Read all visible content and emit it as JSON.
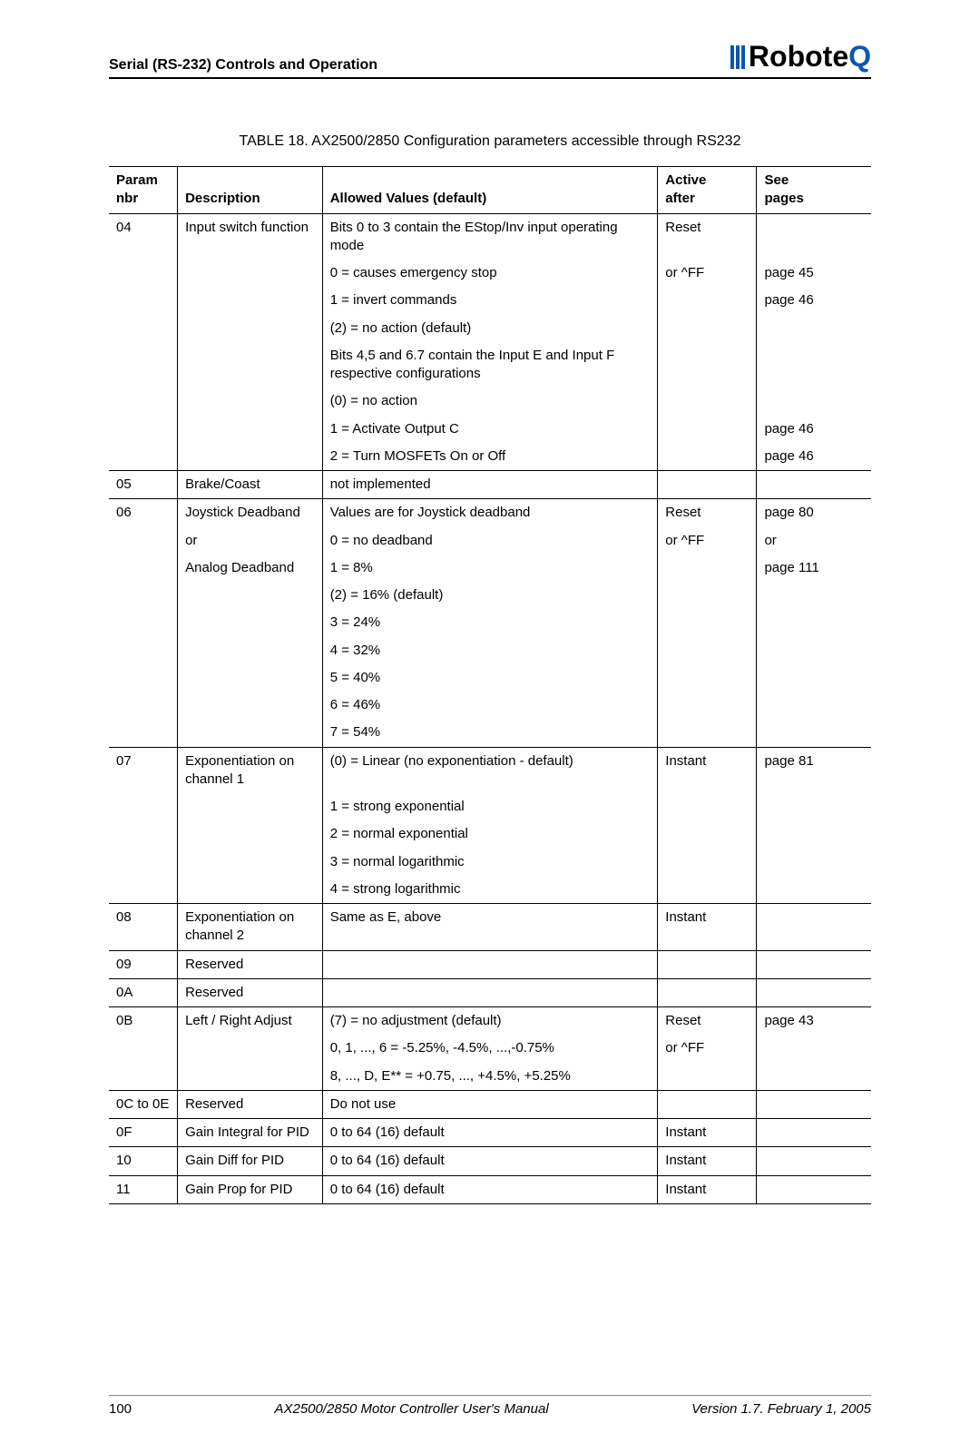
{
  "header": {
    "section": "Serial (RS-232) Controls and Operation",
    "logo_text_a": "Robote",
    "logo_text_b": "Q"
  },
  "caption": "TABLE 18. AX2500/2850 Configuration parameters accessible through RS232",
  "col_headers": {
    "c1a": "Param",
    "c1b": "nbr",
    "c2": "Description",
    "c3": "Allowed Values (default)",
    "c4a": "Active",
    "c4b": "after",
    "c5a": "See",
    "c5b": "pages"
  },
  "r04": {
    "nbr": "04",
    "desc": "Input switch function",
    "v1": "Bits 0 to 3 contain the EStop/Inv input operating mode",
    "v2": "0 = causes emergency stop",
    "v3": "1 = invert commands",
    "v4": "(2) = no action (default)",
    "v5": "Bits 4,5 and 6.7 contain the Input E and Input F respective configurations",
    "v6": "(0) = no action",
    "v7": "1 = Activate Output C",
    "v8": "2 = Turn MOSFETs On or Off",
    "act1": "Reset",
    "act2": "or ^FF",
    "p2": "page 45",
    "p3": "page 46",
    "p7": "page 46",
    "p8": "page 46"
  },
  "r05": {
    "nbr": "05",
    "desc": "Brake/Coast",
    "v": "not implemented"
  },
  "r06": {
    "nbr": "06",
    "d1": "Joystick Deadband",
    "d2": "or",
    "d3": "Analog Deadband",
    "v1": "Values are for Joystick deadband",
    "v2": "0 = no deadband",
    "v3": "1 = 8%",
    "v4": "(2) = 16% (default)",
    "v5": "3 = 24%",
    "v6": "4 = 32%",
    "v7": "5 = 40%",
    "v8": "6 = 46%",
    "v9": "7 = 54%",
    "act1": "Reset",
    "act2": "or ^FF",
    "p1": "page 80",
    "p2": "or",
    "p3": "page 111"
  },
  "r07": {
    "nbr": "07",
    "desc": "Exponentiation on channel 1",
    "v1": "(0) = Linear (no exponentiation - default)",
    "v2": "1 = strong exponential",
    "v3": "2 = normal exponential",
    "v4": "3 = normal logarithmic",
    "v5": "4 = strong logarithmic",
    "act": "Instant",
    "p": "page 81"
  },
  "r08": {
    "nbr": "08",
    "desc": "Exponentiation on channel 2",
    "v": "Same as E, above",
    "act": "Instant"
  },
  "r09": {
    "nbr": "09",
    "desc": "Reserved"
  },
  "r0A": {
    "nbr": "0A",
    "desc": "Reserved"
  },
  "r0B": {
    "nbr": "0B",
    "desc": "Left / Right Adjust",
    "v1": "(7) = no adjustment (default)",
    "v2": "0, 1, ..., 6 = -5.25%, -4.5%, ...,-0.75%",
    "v3": "8, ..., D, E** = +0.75, ..., +4.5%, +5.25%",
    "act1": "Reset",
    "act2": "or ^FF",
    "p": "page 43"
  },
  "r0C": {
    "nbr": "0C to 0E",
    "desc": "Reserved",
    "v": "Do not use"
  },
  "r0F": {
    "nbr": "0F",
    "desc": "Gain Integral for PID",
    "v": "0 to 64 (16) default",
    "act": "Instant"
  },
  "r10": {
    "nbr": "10",
    "desc": "Gain Diff for PID",
    "v": "0 to 64 (16) default",
    "act": "Instant"
  },
  "r11": {
    "nbr": "11",
    "desc": "Gain Prop for PID",
    "v": "0 to 64 (16) default",
    "act": "Instant"
  },
  "footer": {
    "page": "100",
    "title": "AX2500/2850 Motor Controller User's Manual",
    "version": "Version 1.7. February 1, 2005"
  }
}
